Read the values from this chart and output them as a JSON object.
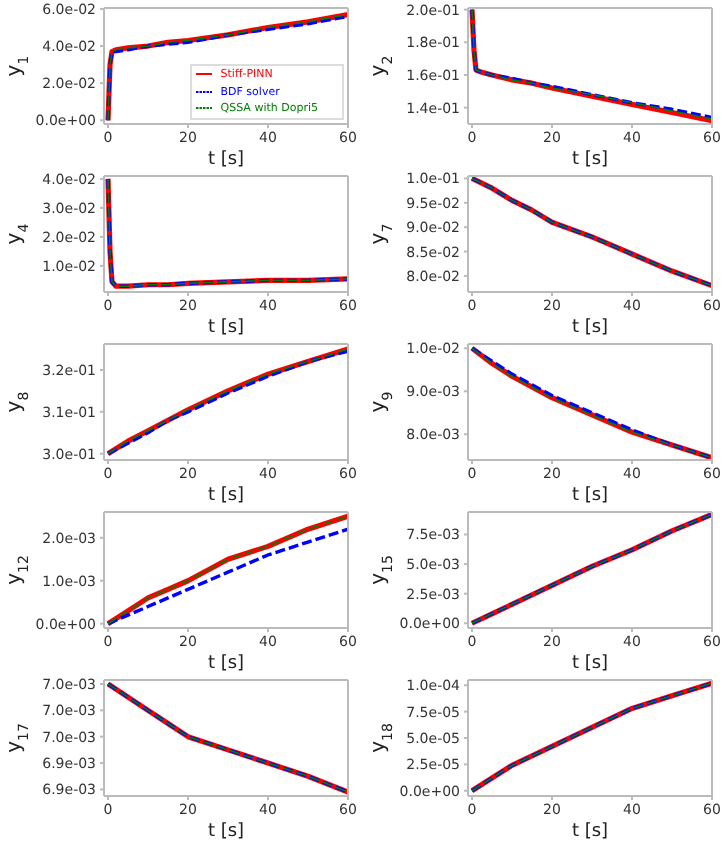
{
  "chart_data": [
    {
      "type": "line",
      "ylabel": "y$_{1}$",
      "xlabel": "t [s]",
      "x": [
        0,
        0.5,
        1,
        2,
        5,
        10,
        15,
        20,
        30,
        40,
        50,
        60
      ],
      "xlim": [
        -1,
        60
      ],
      "xticks": [
        0,
        20,
        40,
        60
      ],
      "ylim": [
        -0.002,
        0.0605
      ],
      "yticks": [
        {
          "value": 0,
          "label": "0.0e+00"
        },
        {
          "value": 0.02,
          "label": "2.0e-02"
        },
        {
          "value": 0.04,
          "label": "4.0e-02"
        },
        {
          "value": 0.06,
          "label": "6.0e-02"
        }
      ],
      "legend": "bottom right",
      "series": [
        {
          "name": "Stiff-PINN",
          "color": "#ff0000",
          "line_style": "solid",
          "values": [
            0,
            0.03,
            0.037,
            0.038,
            0.039,
            0.04,
            0.042,
            0.043,
            0.046,
            0.05,
            0.053,
            0.057
          ]
        },
        {
          "name": "BDF solver",
          "color": "#0000ff",
          "line_style": "dashed",
          "values": [
            0,
            0.03,
            0.037,
            0.037,
            0.038,
            0.04,
            0.041,
            0.042,
            0.046,
            0.049,
            0.052,
            0.056
          ]
        },
        {
          "name": "QSSA with Dopri5",
          "color": "#008000",
          "line_style": "dashed",
          "values": [
            0,
            0.03,
            0.037,
            0.038,
            0.039,
            0.04,
            0.042,
            0.043,
            0.046,
            0.05,
            0.053,
            0.057
          ]
        }
      ]
    },
    {
      "type": "line",
      "ylabel": "y$_{2}$",
      "xlabel": "t [s]",
      "x": [
        0,
        0.5,
        1,
        2,
        5,
        10,
        15,
        20,
        30,
        40,
        50,
        60
      ],
      "xlim": [
        -1,
        60
      ],
      "xticks": [
        0,
        20,
        40,
        60
      ],
      "ylim": [
        0.13,
        0.201
      ],
      "yticks": [
        {
          "value": 0.14,
          "label": "1.4e-01"
        },
        {
          "value": 0.16,
          "label": "1.6e-01"
        },
        {
          "value": 0.18,
          "label": "1.8e-01"
        },
        {
          "value": 0.2,
          "label": "2.0e-01"
        }
      ],
      "series": [
        {
          "color": "#ff0000",
          "line_style": "solid",
          "values": [
            0.2,
            0.175,
            0.163,
            0.162,
            0.16,
            0.157,
            0.155,
            0.152,
            0.147,
            0.142,
            0.137,
            0.132
          ]
        },
        {
          "color": "#0000ff",
          "line_style": "dashed",
          "values": [
            0.2,
            0.175,
            0.163,
            0.162,
            0.16,
            0.158,
            0.155,
            0.153,
            0.148,
            0.143,
            0.139,
            0.134
          ]
        },
        {
          "color": "#008000",
          "line_style": "dashed",
          "values": [
            0.2,
            0.175,
            0.163,
            0.162,
            0.16,
            0.157,
            0.155,
            0.152,
            0.148,
            0.143,
            0.138,
            0.133
          ]
        }
      ]
    },
    {
      "type": "line",
      "ylabel": "y$_{4}$",
      "xlabel": "t [s]",
      "x": [
        0,
        0.5,
        1,
        2,
        5,
        10,
        15,
        20,
        30,
        40,
        50,
        60
      ],
      "xlim": [
        -1,
        60
      ],
      "xticks": [
        0,
        20,
        40,
        60
      ],
      "ylim": [
        0.001,
        0.041
      ],
      "yticks": [
        {
          "value": 0.01,
          "label": "1.0e-02"
        },
        {
          "value": 0.02,
          "label": "2.0e-02"
        },
        {
          "value": 0.03,
          "label": "3.0e-02"
        },
        {
          "value": 0.04,
          "label": "4.0e-02"
        }
      ],
      "series": [
        {
          "color": "#ff0000",
          "line_style": "solid",
          "values": [
            0.04,
            0.015,
            0.0045,
            0.003,
            0.003,
            0.0035,
            0.0035,
            0.004,
            0.0045,
            0.005,
            0.005,
            0.0055
          ]
        },
        {
          "color": "#0000ff",
          "line_style": "dashed",
          "values": [
            0.04,
            0.015,
            0.0045,
            0.003,
            0.003,
            0.0035,
            0.0035,
            0.004,
            0.0045,
            0.005,
            0.005,
            0.0055
          ]
        },
        {
          "color": "#008000",
          "line_style": "dashed",
          "values": [
            0.04,
            0.015,
            0.0045,
            0.003,
            0.003,
            0.0035,
            0.0035,
            0.004,
            0.0045,
            0.005,
            0.005,
            0.0055
          ]
        }
      ]
    },
    {
      "type": "line",
      "ylabel": "y$_{7}$",
      "xlabel": "t [s]",
      "x": [
        0,
        5,
        10,
        15,
        20,
        30,
        40,
        50,
        60
      ],
      "xlim": [
        -1,
        60
      ],
      "xticks": [
        0,
        20,
        40,
        60
      ],
      "ylim": [
        0.0767,
        0.1005
      ],
      "yticks": [
        {
          "value": 0.08,
          "label": "8.0e-02"
        },
        {
          "value": 0.085,
          "label": "8.5e-02"
        },
        {
          "value": 0.09,
          "label": "9.0e-02"
        },
        {
          "value": 0.095,
          "label": "9.5e-02"
        },
        {
          "value": 0.1,
          "label": "1.0e-01"
        }
      ],
      "series": [
        {
          "color": "#ff0000",
          "line_style": "solid",
          "values": [
            0.1,
            0.098,
            0.0955,
            0.0935,
            0.091,
            0.088,
            0.0845,
            0.081,
            0.078
          ]
        },
        {
          "color": "#0000ff",
          "line_style": "dashed",
          "values": [
            0.1,
            0.098,
            0.0955,
            0.0935,
            0.091,
            0.088,
            0.0845,
            0.081,
            0.078
          ]
        },
        {
          "color": "#008000",
          "line_style": "dashed",
          "values": [
            0.1,
            0.098,
            0.0955,
            0.0935,
            0.091,
            0.088,
            0.0845,
            0.081,
            0.078
          ]
        }
      ]
    },
    {
      "type": "line",
      "ylabel": "y$_{8}$",
      "xlabel": "t [s]",
      "x": [
        0,
        5,
        10,
        15,
        20,
        30,
        40,
        50,
        60
      ],
      "xlim": [
        -1,
        60
      ],
      "xticks": [
        0,
        20,
        40,
        60
      ],
      "ylim": [
        0.2985,
        0.3262
      ],
      "yticks": [
        {
          "value": 0.3,
          "label": "3.0e-01"
        },
        {
          "value": 0.31,
          "label": "3.1e-01"
        },
        {
          "value": 0.32,
          "label": "3.2e-01"
        }
      ],
      "series": [
        {
          "color": "#ff0000",
          "line_style": "solid",
          "values": [
            0.3,
            0.303,
            0.3055,
            0.308,
            0.3105,
            0.315,
            0.319,
            0.322,
            0.325
          ]
        },
        {
          "color": "#0000ff",
          "line_style": "dashed",
          "values": [
            0.3,
            0.3025,
            0.305,
            0.308,
            0.31,
            0.3145,
            0.3185,
            0.322,
            0.3245
          ]
        },
        {
          "color": "#008000",
          "line_style": "dashed",
          "values": [
            0.3,
            0.303,
            0.3055,
            0.308,
            0.3105,
            0.315,
            0.319,
            0.322,
            0.325
          ]
        }
      ]
    },
    {
      "type": "line",
      "ylabel": "y$_{9}$",
      "xlabel": "t [s]",
      "x": [
        0,
        5,
        10,
        15,
        20,
        30,
        40,
        50,
        60
      ],
      "xlim": [
        -1,
        60
      ],
      "xticks": [
        0,
        20,
        40,
        60
      ],
      "ylim": [
        0.0074,
        0.0101
      ],
      "yticks": [
        {
          "value": 0.008,
          "label": "8.0e-03"
        },
        {
          "value": 0.009,
          "label": "9.0e-03"
        },
        {
          "value": 0.01,
          "label": "1.0e-02"
        }
      ],
      "series": [
        {
          "color": "#ff0000",
          "line_style": "solid",
          "values": [
            0.01,
            0.00965,
            0.00935,
            0.0091,
            0.00885,
            0.00845,
            0.00805,
            0.00775,
            0.00745
          ]
        },
        {
          "color": "#0000ff",
          "line_style": "dashed",
          "values": [
            0.01,
            0.0097,
            0.0094,
            0.00915,
            0.0089,
            0.0085,
            0.0081,
            0.00775,
            0.00745
          ]
        },
        {
          "color": "#008000",
          "line_style": "dashed",
          "values": [
            0.01,
            0.00965,
            0.00935,
            0.0091,
            0.00885,
            0.00845,
            0.00805,
            0.00775,
            0.00745
          ]
        }
      ]
    },
    {
      "type": "line",
      "ylabel": "y$_{12}$",
      "xlabel": "t [s]",
      "x": [
        0,
        5,
        10,
        15,
        20,
        30,
        40,
        50,
        60
      ],
      "xlim": [
        -1,
        60
      ],
      "xticks": [
        0,
        20,
        40,
        60
      ],
      "ylim": [
        -0.0001,
        0.0026
      ],
      "yticks": [
        {
          "value": 0,
          "label": "0.0e+00"
        },
        {
          "value": 0.001,
          "label": "1.0e-03"
        },
        {
          "value": 0.002,
          "label": "2.0e-03"
        }
      ],
      "series": [
        {
          "color": "#ff0000",
          "line_style": "solid",
          "values": [
            0,
            0.0003,
            0.0006,
            0.0008,
            0.001,
            0.0015,
            0.0018,
            0.0022,
            0.0025
          ]
        },
        {
          "color": "#0000ff",
          "line_style": "dashed",
          "values": [
            0,
            0.0002,
            0.0004,
            0.0006,
            0.0008,
            0.0012,
            0.0016,
            0.0019,
            0.0022
          ]
        },
        {
          "color": "#008000",
          "line_style": "dashed",
          "values": [
            0,
            0.0003,
            0.0006,
            0.0008,
            0.001,
            0.0015,
            0.0018,
            0.0022,
            0.0025
          ]
        }
      ]
    },
    {
      "type": "line",
      "ylabel": "y$_{15}$",
      "xlabel": "t [s]",
      "x": [
        0,
        5,
        10,
        15,
        20,
        30,
        40,
        50,
        60
      ],
      "xlim": [
        -1,
        60
      ],
      "xticks": [
        0,
        20,
        40,
        60
      ],
      "ylim": [
        -0.0004,
        0.0094
      ],
      "yticks": [
        {
          "value": 0,
          "label": "0.0e+00"
        },
        {
          "value": 0.0025,
          "label": "2.5e-03"
        },
        {
          "value": 0.005,
          "label": "5.0e-03"
        },
        {
          "value": 0.0075,
          "label": "7.5e-03"
        }
      ],
      "series": [
        {
          "color": "#ff0000",
          "line_style": "solid",
          "values": [
            0,
            0.0008,
            0.0016,
            0.0024,
            0.0032,
            0.0048,
            0.0062,
            0.0078,
            0.0092
          ]
        },
        {
          "color": "#0000ff",
          "line_style": "dashed",
          "values": [
            0,
            0.0008,
            0.0016,
            0.0024,
            0.0032,
            0.0048,
            0.0062,
            0.0078,
            0.0092
          ]
        },
        {
          "color": "#008000",
          "line_style": "dashed",
          "values": [
            0,
            0.0008,
            0.0016,
            0.0024,
            0.0032,
            0.0048,
            0.0062,
            0.0078,
            0.0092
          ]
        }
      ]
    },
    {
      "type": "line",
      "ylabel": "y$_{17}$",
      "xlabel": "t [s]",
      "x": [
        0,
        5,
        10,
        15,
        20,
        30,
        40,
        50,
        60
      ],
      "xlim": [
        -1,
        60
      ],
      "xticks": [
        0,
        20,
        40,
        60
      ],
      "ylim": [
        0.006915,
        0.007003
      ],
      "yticks": [
        {
          "value": 0.00692,
          "label": "6.9e-03"
        },
        {
          "value": 0.00694,
          "label": "6.9e-03"
        },
        {
          "value": 0.00696,
          "label": "7.0e-03"
        },
        {
          "value": 0.00698,
          "label": "7.0e-03"
        },
        {
          "value": 0.007,
          "label": "7.0e-03"
        }
      ],
      "series": [
        {
          "color": "#ff0000",
          "line_style": "solid",
          "values": [
            0.007,
            0.00699,
            0.00698,
            0.00697,
            0.00696,
            0.00695,
            0.00694,
            0.00693,
            0.006918
          ]
        },
        {
          "color": "#0000ff",
          "line_style": "dashed",
          "values": [
            0.007,
            0.00699,
            0.00698,
            0.00697,
            0.00696,
            0.00695,
            0.00694,
            0.00693,
            0.006918
          ]
        },
        {
          "color": "#008000",
          "line_style": "dashed",
          "values": [
            0.007,
            0.00699,
            0.00698,
            0.00697,
            0.00696,
            0.00695,
            0.00694,
            0.00693,
            0.006918
          ]
        }
      ]
    },
    {
      "type": "line",
      "ylabel": "y$_{18}$",
      "xlabel": "t [s]",
      "x": [
        0,
        5,
        10,
        15,
        20,
        30,
        40,
        50,
        60
      ],
      "xlim": [
        -1,
        60
      ],
      "xticks": [
        0,
        20,
        40,
        60
      ],
      "ylim": [
        -5e-06,
        0.000105
      ],
      "yticks": [
        {
          "value": 0,
          "label": "0.0e+00"
        },
        {
          "value": 2.5e-05,
          "label": "2.5e-05"
        },
        {
          "value": 5e-05,
          "label": "5.0e-05"
        },
        {
          "value": 7.5e-05,
          "label": "7.5e-05"
        },
        {
          "value": 0.0001,
          "label": "1.0e-04"
        }
      ],
      "series": [
        {
          "color": "#ff0000",
          "line_style": "solid",
          "values": [
            0,
            1.2e-05,
            2.4e-05,
            3.3e-05,
            4.2e-05,
            6e-05,
            7.8e-05,
            9e-05,
            0.000102
          ]
        },
        {
          "color": "#0000ff",
          "line_style": "dashed",
          "values": [
            0,
            1.2e-05,
            2.4e-05,
            3.3e-05,
            4.2e-05,
            6e-05,
            7.8e-05,
            9e-05,
            0.000102
          ]
        },
        {
          "color": "#008000",
          "line_style": "dashed",
          "values": [
            0,
            1.2e-05,
            2.4e-05,
            3.3e-05,
            4.2e-05,
            6e-05,
            7.8e-05,
            9e-05,
            0.000102
          ]
        }
      ]
    }
  ]
}
